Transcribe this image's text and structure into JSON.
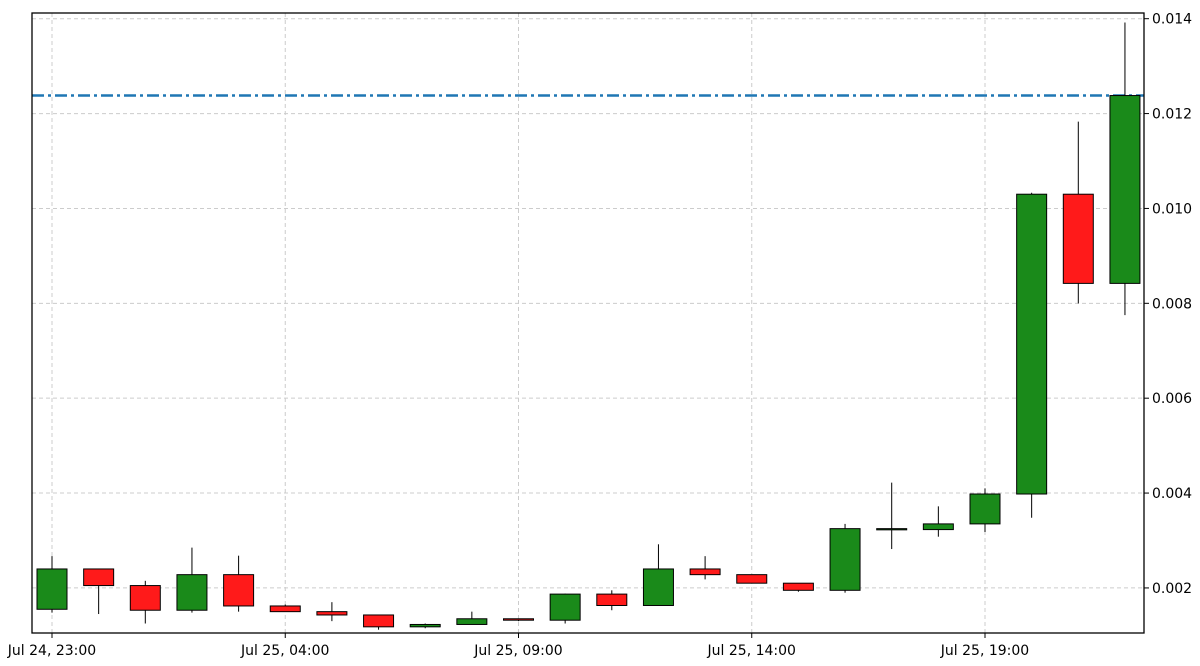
{
  "chart_data": {
    "type": "candlestick",
    "title": "",
    "xlabel": "",
    "ylabel": "",
    "y_axis_side": "right",
    "ylim": [
      0.00105,
      0.01412
    ],
    "grid": true,
    "colors": {
      "up": "#1a8a1a",
      "down": "#ff1a1a",
      "reference_line": "#1f77b4"
    },
    "reference_line": {
      "value": 0.01238,
      "style": "dash-dot"
    },
    "x_ticks": [
      {
        "index": 0,
        "label": "Jul 24, 23:00"
      },
      {
        "index": 5,
        "label": "Jul 25, 04:00"
      },
      {
        "index": 10,
        "label": "Jul 25, 09:00"
      },
      {
        "index": 15,
        "label": "Jul 25, 14:00"
      },
      {
        "index": 20,
        "label": "Jul 25, 19:00"
      }
    ],
    "y_ticks": [
      {
        "value": 0.002,
        "label": "0.002"
      },
      {
        "value": 0.004,
        "label": "0.004"
      },
      {
        "value": 0.006,
        "label": "0.006"
      },
      {
        "value": 0.008,
        "label": "0.008"
      },
      {
        "value": 0.01,
        "label": "0.010"
      },
      {
        "value": 0.012,
        "label": "0.012"
      },
      {
        "value": 0.014,
        "label": "0.014"
      }
    ],
    "candles": [
      {
        "open": 0.00155,
        "high": 0.00267,
        "low": 0.00148,
        "close": 0.0024
      },
      {
        "open": 0.0024,
        "high": 0.0024,
        "low": 0.00145,
        "close": 0.00205
      },
      {
        "open": 0.00205,
        "high": 0.00215,
        "low": 0.00125,
        "close": 0.00153
      },
      {
        "open": 0.00153,
        "high": 0.00285,
        "low": 0.00148,
        "close": 0.00228
      },
      {
        "open": 0.00228,
        "high": 0.00268,
        "low": 0.0015,
        "close": 0.00162
      },
      {
        "open": 0.00162,
        "high": 0.00165,
        "low": 0.0015,
        "close": 0.0015
      },
      {
        "open": 0.0015,
        "high": 0.0017,
        "low": 0.0013,
        "close": 0.00143
      },
      {
        "open": 0.00143,
        "high": 0.00143,
        "low": 0.00112,
        "close": 0.00118
      },
      {
        "open": 0.00118,
        "high": 0.00125,
        "low": 0.00115,
        "close": 0.00123
      },
      {
        "open": 0.00123,
        "high": 0.0015,
        "low": 0.00123,
        "close": 0.00135
      },
      {
        "open": 0.00135,
        "high": 0.00135,
        "low": 0.0013,
        "close": 0.00132
      },
      {
        "open": 0.00132,
        "high": 0.00188,
        "low": 0.00125,
        "close": 0.00187
      },
      {
        "open": 0.00187,
        "high": 0.00195,
        "low": 0.00153,
        "close": 0.00163
      },
      {
        "open": 0.00163,
        "high": 0.00292,
        "low": 0.00163,
        "close": 0.0024
      },
      {
        "open": 0.0024,
        "high": 0.00267,
        "low": 0.00218,
        "close": 0.00228
      },
      {
        "open": 0.00228,
        "high": 0.00228,
        "low": 0.0021,
        "close": 0.0021
      },
      {
        "open": 0.0021,
        "high": 0.0021,
        "low": 0.00192,
        "close": 0.00195
      },
      {
        "open": 0.00195,
        "high": 0.00335,
        "low": 0.0019,
        "close": 0.00325
      },
      {
        "open": 0.00325,
        "high": 0.00422,
        "low": 0.00282,
        "close": 0.00325
      },
      {
        "open": 0.00323,
        "high": 0.00372,
        "low": 0.00308,
        "close": 0.00335
      },
      {
        "open": 0.00335,
        "high": 0.0041,
        "low": 0.00318,
        "close": 0.00398
      },
      {
        "open": 0.00398,
        "high": 0.01033,
        "low": 0.00348,
        "close": 0.0103
      },
      {
        "open": 0.0103,
        "high": 0.01183,
        "low": 0.008,
        "close": 0.00842
      },
      {
        "open": 0.00842,
        "high": 0.01392,
        "low": 0.00775,
        "close": 0.01238
      }
    ]
  }
}
